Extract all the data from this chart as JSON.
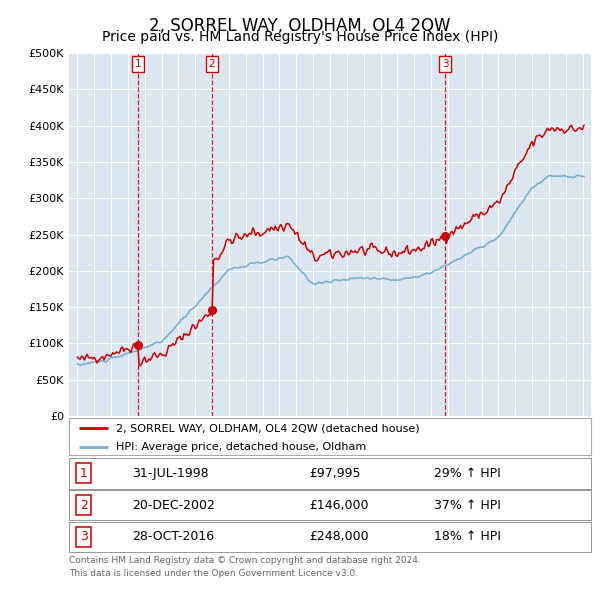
{
  "title": "2, SORREL WAY, OLDHAM, OL4 2QW",
  "subtitle": "Price paid vs. HM Land Registry's House Price Index (HPI)",
  "legend_line1": "2, SORREL WAY, OLDHAM, OL4 2QW (detached house)",
  "legend_line2": "HPI: Average price, detached house, Oldham",
  "footer1": "Contains HM Land Registry data © Crown copyright and database right 2024.",
  "footer2": "This data is licensed under the Open Government Licence v3.0.",
  "purchases": [
    {
      "label": "1",
      "date": "31-JUL-1998",
      "price": 97995,
      "price_str": "£97,995",
      "pct": "29%",
      "dir": "↑",
      "year": 1998.58
    },
    {
      "label": "2",
      "date": "20-DEC-2002",
      "price": 146000,
      "price_str": "£146,000",
      "pct": "37%",
      "dir": "↑",
      "year": 2002.97
    },
    {
      "label": "3",
      "date": "28-OCT-2016",
      "price": 248000,
      "price_str": "£248,000",
      "pct": "18%",
      "dir": "↑",
      "year": 2016.83
    }
  ],
  "ylim": [
    0,
    500000
  ],
  "yticks": [
    0,
    50000,
    100000,
    150000,
    200000,
    250000,
    300000,
    350000,
    400000,
    450000,
    500000
  ],
  "xlim_start": 1994.5,
  "xlim_end": 2025.5,
  "xtick_years": [
    1995,
    1996,
    1997,
    1998,
    1999,
    2000,
    2001,
    2002,
    2003,
    2004,
    2005,
    2006,
    2007,
    2008,
    2009,
    2010,
    2011,
    2012,
    2013,
    2014,
    2015,
    2016,
    2017,
    2018,
    2019,
    2020,
    2021,
    2022,
    2023,
    2024,
    2025
  ],
  "background_color": "#ffffff",
  "plot_bg_color": "#dce6f0",
  "grid_color": "#ffffff",
  "red_line_color": "#cc0000",
  "blue_line_color": "#7ab0d4",
  "vline_color": "#cc0000",
  "purchase_box_color": "#cc0000",
  "title_fontsize": 12,
  "subtitle_fontsize": 10
}
